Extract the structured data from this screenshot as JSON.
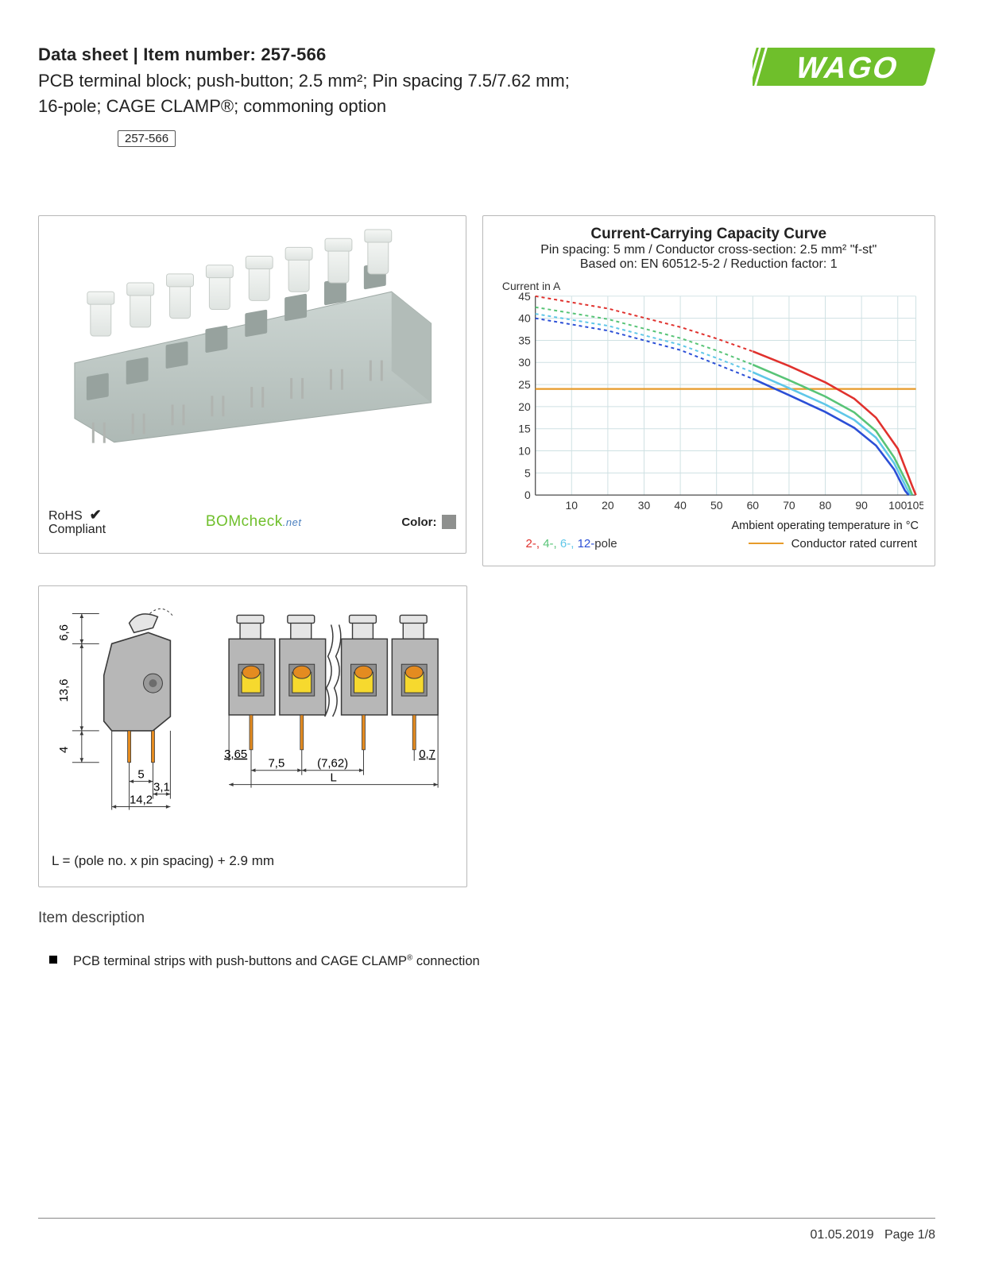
{
  "header": {
    "title_prefix": "Data sheet  |  Item number: ",
    "item_number": "257-566",
    "subtitle": "PCB terminal block; push-button; 2.5 mm²; Pin spacing 7.5/7.62 mm; 16-pole; CAGE CLAMP®; commoning option",
    "badge": "257-566"
  },
  "logo": {
    "text": "WAGO",
    "fill": "#6fbf2b",
    "accent": "#ffffff"
  },
  "product_card": {
    "body_color": "#c0cbc8",
    "button_color": "#eef1ef",
    "pin_color": "#b0b4b0",
    "rohs_label": "RoHS",
    "rohs_compliant": "Compliant",
    "check_mark": "✔",
    "bomcheck_b1": "BOM",
    "bomcheck_b2": "check",
    "bomcheck_b3": ".net",
    "color_label": "Color:",
    "swatch": "#8e908e"
  },
  "chart": {
    "title": "Current-Carrying Capacity Curve",
    "sub1": "Pin spacing: 5 mm / Conductor cross-section: 2.5 mm² \"f-st\"",
    "sub2": "Based on: EN 60512-5-2 / Reduction factor: 1",
    "y_label": "Current in A",
    "y_ticks": [
      0,
      5,
      10,
      15,
      20,
      25,
      30,
      35,
      40,
      45
    ],
    "x_ticks": [
      0,
      10,
      20,
      30,
      40,
      50,
      60,
      70,
      80,
      90,
      100,
      105
    ],
    "xlim": [
      0,
      105
    ],
    "ylim": [
      0,
      45
    ],
    "grid_color": "#cfe1e3",
    "axis_color": "#5b5b5b",
    "rated_current": 24,
    "rated_color": "#e79b2a",
    "series": [
      {
        "name": "2-pole",
        "color": "#e0312d",
        "dash": "4 4",
        "solid_from": 60,
        "pts": [
          [
            0,
            45
          ],
          [
            20,
            42.2
          ],
          [
            40,
            38.0
          ],
          [
            50,
            35.4
          ],
          [
            60,
            32.5
          ],
          [
            70,
            29.2
          ],
          [
            80,
            25.5
          ],
          [
            88,
            21.8
          ],
          [
            94,
            17.5
          ],
          [
            100,
            10.5
          ],
          [
            104,
            2.0
          ],
          [
            105,
            0
          ]
        ]
      },
      {
        "name": "4-pole",
        "color": "#58c477",
        "dash": "4 4",
        "solid_from": 60,
        "pts": [
          [
            0,
            42.5
          ],
          [
            20,
            39.8
          ],
          [
            40,
            35.5
          ],
          [
            50,
            32.7
          ],
          [
            60,
            29.5
          ],
          [
            70,
            26.0
          ],
          [
            80,
            22.3
          ],
          [
            88,
            18.7
          ],
          [
            94,
            14.5
          ],
          [
            99,
            8.5
          ],
          [
            103,
            2.0
          ],
          [
            104,
            0
          ]
        ]
      },
      {
        "name": "6-pole",
        "color": "#5fc7e8",
        "dash": "4 4",
        "solid_from": 60,
        "pts": [
          [
            0,
            41.0
          ],
          [
            20,
            38.3
          ],
          [
            40,
            34.0
          ],
          [
            50,
            31.0
          ],
          [
            60,
            27.8
          ],
          [
            70,
            24.2
          ],
          [
            80,
            20.5
          ],
          [
            88,
            17.0
          ],
          [
            94,
            13.0
          ],
          [
            99,
            7.2
          ],
          [
            102.5,
            1.5
          ],
          [
            103.5,
            0
          ]
        ]
      },
      {
        "name": "12-pole",
        "color": "#2b4fd6",
        "dash": "4 4",
        "solid_from": 60,
        "pts": [
          [
            0,
            40.0
          ],
          [
            20,
            37.2
          ],
          [
            40,
            32.8
          ],
          [
            50,
            29.6
          ],
          [
            60,
            26.3
          ],
          [
            70,
            22.6
          ],
          [
            80,
            18.8
          ],
          [
            88,
            15.2
          ],
          [
            94,
            11.2
          ],
          [
            99,
            5.8
          ],
          [
            102,
            1.0
          ],
          [
            103,
            0
          ]
        ]
      }
    ],
    "x_axis_label": "Ambient operating temperature in °C",
    "legend_poles": [
      {
        "label": "2-",
        "color": "#e0312d"
      },
      {
        "label": "4-",
        "color": "#58c477"
      },
      {
        "label": "6-",
        "color": "#5fc7e8"
      },
      {
        "label": "12-",
        "color": "#2b4fd6"
      }
    ],
    "legend_pole_suffix": "pole",
    "legend_rated": "Conductor rated current"
  },
  "dim": {
    "stroke": "#3a3a3a",
    "body_fill": "#b7b7b7",
    "button_fill": "#e5e5e5",
    "orange": "#e48b20",
    "yellow": "#f6d92e",
    "labels": {
      "h_top": "6,6",
      "h_mid": "13,6",
      "h_bot": "4",
      "d1": "5",
      "d2": "3,1",
      "d3": "14,2",
      "off": "3,65",
      "pitch1": "7,5",
      "pitch2": "(7,62)",
      "edge": "0,7",
      "L": "L"
    },
    "formula": "L = (pole no. x pin spacing) + 2.9 mm"
  },
  "description": {
    "heading": "Item description",
    "items": [
      "PCB terminal strips with push-buttons and CAGE CLAMP® connection"
    ]
  },
  "footer": {
    "date": "01.05.2019",
    "page": "Page 1/8"
  }
}
